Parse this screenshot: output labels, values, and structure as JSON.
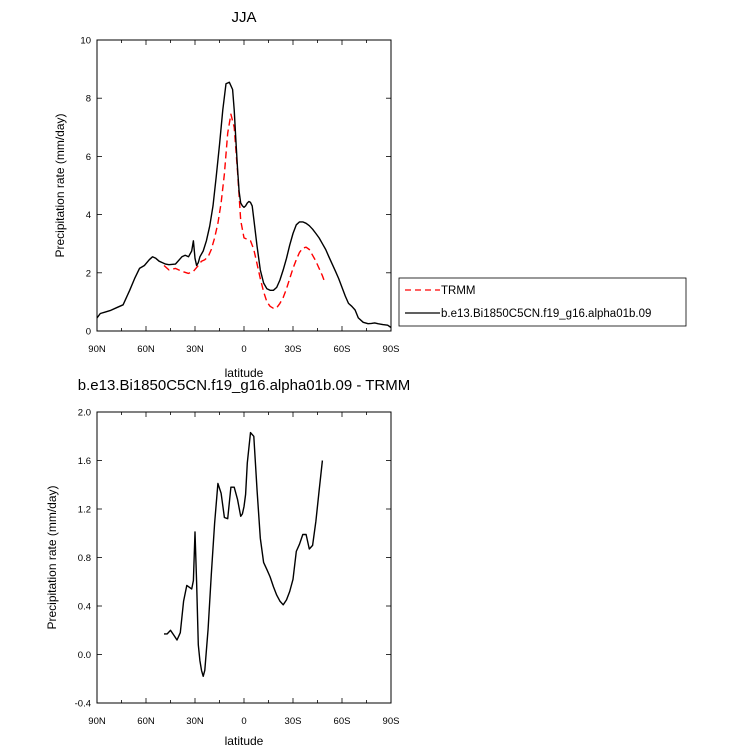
{
  "chart_data": [
    {
      "type": "line",
      "title": "JJA",
      "xlabel": "latitude",
      "ylabel": "Precipitation rate (mm/day)",
      "xlim": [
        90,
        -90
      ],
      "ylim": [
        0,
        10
      ],
      "yticks": [
        0,
        2,
        4,
        6,
        8,
        10
      ],
      "xticks": [
        {
          "value": 90,
          "label": "90N"
        },
        {
          "value": 60,
          "label": "60N"
        },
        {
          "value": 30,
          "label": "30N"
        },
        {
          "value": 0,
          "label": "0"
        },
        {
          "value": -30,
          "label": "30S"
        },
        {
          "value": -60,
          "label": "60S"
        },
        {
          "value": -90,
          "label": "90S"
        }
      ],
      "legend_position": "right",
      "series": [
        {
          "name": "TRMM",
          "color": "#ff0000",
          "dash": "dashed",
          "x": [
            49,
            46,
            42,
            38,
            34,
            31,
            28,
            26,
            24,
            22,
            20,
            18,
            16,
            14,
            12,
            10,
            8,
            6,
            4,
            2,
            0,
            -2,
            -4,
            -6,
            -8,
            -10,
            -12,
            -14,
            -16,
            -18,
            -20,
            -22,
            -24,
            -26,
            -28,
            -30,
            -32,
            -34,
            -36,
            -38,
            -40,
            -42,
            -44,
            -46,
            -48,
            -49
          ],
          "y": [
            2.25,
            2.1,
            2.15,
            2.05,
            1.98,
            2.05,
            2.25,
            2.4,
            2.45,
            2.55,
            2.8,
            3.2,
            3.7,
            4.4,
            5.4,
            6.8,
            7.45,
            7.0,
            5.5,
            3.8,
            3.2,
            3.15,
            3.1,
            2.8,
            2.3,
            1.8,
            1.35,
            1.0,
            0.85,
            0.78,
            0.8,
            0.95,
            1.15,
            1.45,
            1.8,
            2.15,
            2.45,
            2.7,
            2.85,
            2.88,
            2.8,
            2.6,
            2.4,
            2.15,
            1.9,
            1.75
          ]
        },
        {
          "name": "b.e13.Bi1850C5CN.f19_g16.alpha01b.09",
          "color": "#000000",
          "dash": "solid",
          "x": [
            90,
            88,
            85,
            82,
            78,
            74,
            70,
            67,
            64,
            61,
            58,
            56,
            54,
            52,
            50,
            48,
            46,
            42,
            38,
            36,
            34,
            32,
            31,
            30,
            29,
            28,
            27,
            25,
            23,
            21,
            19,
            17,
            15,
            13,
            11,
            9,
            7,
            6,
            5,
            4,
            3,
            2,
            1,
            0,
            -1,
            -2,
            -3,
            -4,
            -5,
            -6,
            -8,
            -10,
            -12,
            -14,
            -16,
            -18,
            -20,
            -22,
            -24,
            -26,
            -28,
            -30,
            -32,
            -34,
            -36,
            -38,
            -40,
            -42,
            -44,
            -46,
            -48,
            -50,
            -52,
            -54,
            -56,
            -58,
            -60,
            -62,
            -64,
            -66,
            -68,
            -70,
            -73,
            -76,
            -78,
            -80,
            -82,
            -85,
            -88,
            -90
          ],
          "y": [
            0.45,
            0.6,
            0.65,
            0.7,
            0.8,
            0.9,
            1.4,
            1.8,
            2.15,
            2.25,
            2.45,
            2.55,
            2.5,
            2.4,
            2.35,
            2.3,
            2.28,
            2.3,
            2.55,
            2.6,
            2.55,
            2.75,
            3.1,
            2.5,
            2.25,
            2.35,
            2.55,
            2.75,
            3.1,
            3.6,
            4.3,
            5.3,
            6.4,
            7.6,
            8.5,
            8.55,
            8.3,
            7.6,
            6.6,
            5.6,
            4.8,
            4.4,
            4.3,
            4.25,
            4.3,
            4.4,
            4.45,
            4.42,
            4.3,
            3.85,
            2.9,
            2.1,
            1.65,
            1.45,
            1.4,
            1.4,
            1.5,
            1.75,
            2.1,
            2.5,
            2.95,
            3.35,
            3.65,
            3.75,
            3.75,
            3.7,
            3.62,
            3.5,
            3.35,
            3.2,
            3.0,
            2.8,
            2.55,
            2.3,
            2.05,
            1.8,
            1.5,
            1.2,
            0.95,
            0.85,
            0.72,
            0.45,
            0.3,
            0.25,
            0.26,
            0.28,
            0.25,
            0.22,
            0.2,
            0.12
          ]
        }
      ],
      "legend": [
        "TRMM",
        "b.e13.Bi1850C5CN.f19_g16.alpha01b.09"
      ]
    },
    {
      "type": "line",
      "title": "b.e13.Bi1850C5CN.f19_g16.alpha01b.09 - TRMM",
      "xlabel": "latitude",
      "ylabel": "Precipitation rate (mm/day)",
      "xlim": [
        90,
        -90
      ],
      "ylim": [
        -0.4,
        2.0
      ],
      "yticks": [
        -0.4,
        0.0,
        0.4,
        0.8,
        1.2,
        1.6,
        2.0
      ],
      "xticks": [
        {
          "value": 90,
          "label": "90N"
        },
        {
          "value": 60,
          "label": "60N"
        },
        {
          "value": 30,
          "label": "30N"
        },
        {
          "value": 0,
          "label": "0"
        },
        {
          "value": -30,
          "label": "30S"
        },
        {
          "value": -60,
          "label": "60S"
        },
        {
          "value": -90,
          "label": "90S"
        }
      ],
      "series": [
        {
          "name": "",
          "color": "#000000",
          "dash": "solid",
          "x": [
            49,
            47,
            45,
            43,
            41,
            39,
            37,
            35,
            33,
            32,
            31,
            30,
            29,
            28,
            27,
            26,
            25,
            24,
            22,
            20,
            18,
            16,
            14,
            12,
            10,
            8,
            6,
            4,
            2,
            1,
            0,
            -1,
            -2,
            -4,
            -6,
            -8,
            -10,
            -12,
            -14,
            -16,
            -18,
            -20,
            -22,
            -24,
            -26,
            -28,
            -30,
            -32,
            -34,
            -36,
            -38,
            -40,
            -42,
            -44,
            -46,
            -48
          ],
          "y": [
            0.17,
            0.17,
            0.2,
            0.16,
            0.12,
            0.18,
            0.44,
            0.57,
            0.55,
            0.54,
            0.61,
            1.01,
            0.6,
            0.08,
            -0.05,
            -0.13,
            -0.18,
            -0.13,
            0.21,
            0.66,
            1.08,
            1.41,
            1.33,
            1.13,
            1.12,
            1.38,
            1.38,
            1.28,
            1.14,
            1.16,
            1.22,
            1.32,
            1.58,
            1.83,
            1.8,
            1.35,
            0.96,
            0.76,
            0.7,
            0.64,
            0.56,
            0.49,
            0.44,
            0.41,
            0.45,
            0.52,
            0.62,
            0.85,
            0.91,
            0.99,
            0.99,
            0.87,
            0.9,
            1.1,
            1.35,
            1.6
          ]
        }
      ]
    }
  ]
}
